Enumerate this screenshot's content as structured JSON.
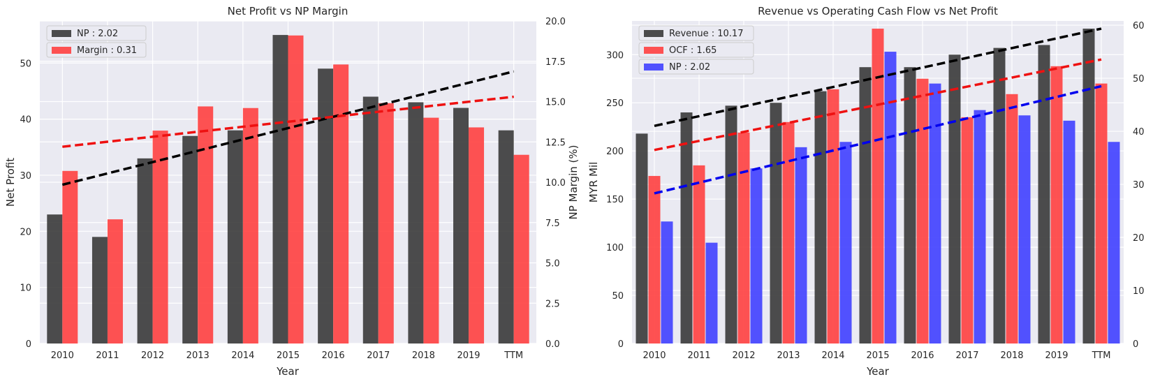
{
  "chart_data": [
    {
      "type": "bar",
      "title": "Net Profit vs NP Margin",
      "xlabel": "Year",
      "ylabel": "Net Profit",
      "y2label": "NP Margin (%)",
      "categories": [
        "2010",
        "2011",
        "2012",
        "2013",
        "2014",
        "2015",
        "2016",
        "2017",
        "2018",
        "2019",
        "TTM"
      ],
      "ylim": [
        0,
        57.5
      ],
      "yticks": [
        0,
        10,
        20,
        30,
        40,
        50
      ],
      "y2lim": [
        0,
        20
      ],
      "y2ticks": [
        "0.0",
        "2.5",
        "5.0",
        "7.5",
        "10.0",
        "12.5",
        "15.0",
        "17.5",
        "20.0"
      ],
      "series": [
        {
          "name": "NP : 2.02",
          "axis": "left",
          "color": "#3a3a3a",
          "values": [
            23,
            19,
            33,
            37,
            38,
            55,
            49,
            44,
            43,
            42,
            38
          ]
        },
        {
          "name": "Margin : 0.31",
          "axis": "right",
          "color": "#ff4040",
          "values": [
            10.7,
            7.7,
            13.2,
            14.7,
            14.6,
            19.1,
            17.3,
            14.9,
            14.0,
            13.4,
            11.7
          ]
        }
      ],
      "trendlines": [
        {
          "color": "#000000",
          "axis": "left",
          "x": [
            0,
            10
          ],
          "y": [
            28.3,
            48.5
          ]
        },
        {
          "color": "#ee1111",
          "axis": "right",
          "x": [
            0,
            10
          ],
          "y": [
            12.2,
            15.3
          ]
        }
      ],
      "legend_position": "top-left",
      "grid": true
    },
    {
      "type": "bar",
      "title": "Revenue vs Operating Cash Flow vs Net Profit",
      "xlabel": "Year",
      "ylabel": "MYR Mil",
      "categories": [
        "2010",
        "2011",
        "2012",
        "2013",
        "2014",
        "2015",
        "2016",
        "2017",
        "2018",
        "2019",
        "TTM"
      ],
      "ylim": [
        0,
        335
      ],
      "yticks": [
        0,
        50,
        100,
        150,
        200,
        250,
        300
      ],
      "y2lim": [
        0,
        60.8
      ],
      "y2ticks": [
        0,
        10,
        20,
        30,
        40,
        50,
        60
      ],
      "series": [
        {
          "name": "Revenue : 10.17",
          "axis": "left",
          "color": "#3a3a3a",
          "values": [
            218,
            240,
            247,
            250,
            262,
            287,
            287,
            300,
            307,
            310,
            327
          ]
        },
        {
          "name": "OCF : 1.65",
          "axis": "left",
          "color": "#ff4040",
          "values": [
            174,
            185,
            219,
            230,
            264,
            327,
            275,
            235,
            259,
            288,
            270
          ]
        },
        {
          "name": "NP : 2.02",
          "axis": "right",
          "color": "#4040ff",
          "values": [
            23,
            19,
            33,
            37,
            38,
            55,
            49,
            44,
            43,
            42,
            38
          ]
        }
      ],
      "trendlines": [
        {
          "color": "#000000",
          "axis": "left",
          "x": [
            0,
            10
          ],
          "y": [
            226,
            327
          ]
        },
        {
          "color": "#ee1111",
          "axis": "left",
          "x": [
            0,
            10
          ],
          "y": [
            201,
            295
          ]
        },
        {
          "color": "#0000ee",
          "axis": "right",
          "x": [
            0,
            10
          ],
          "y": [
            28.3,
            48.5
          ]
        }
      ],
      "legend_position": "top-left",
      "grid": true
    }
  ]
}
